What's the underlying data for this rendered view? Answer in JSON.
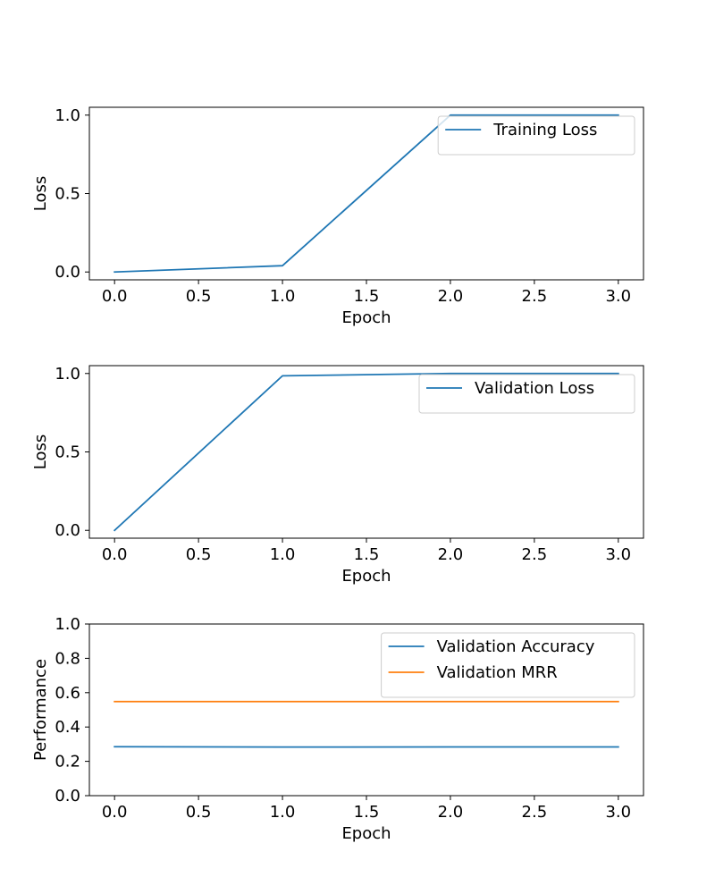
{
  "chart_data": [
    {
      "type": "line",
      "xlabel": "Epoch",
      "ylabel": "Loss",
      "xlim": [
        -0.15,
        3.15
      ],
      "ylim": [
        -0.05,
        1.05
      ],
      "xticks": [
        "0.0",
        "0.5",
        "1.0",
        "1.5",
        "2.0",
        "2.5",
        "3.0"
      ],
      "yticks": [
        "0.0",
        "0.5",
        "1.0"
      ],
      "grid": false,
      "legend_position": "top-right",
      "series": [
        {
          "name": "Training Loss",
          "color": "#1f77b4",
          "x": [
            0,
            1,
            2,
            3
          ],
          "y": [
            0.0,
            0.04,
            1.0,
            1.0
          ]
        }
      ]
    },
    {
      "type": "line",
      "xlabel": "Epoch",
      "ylabel": "Loss",
      "xlim": [
        -0.15,
        3.15
      ],
      "ylim": [
        -0.05,
        1.05
      ],
      "xticks": [
        "0.0",
        "0.5",
        "1.0",
        "1.5",
        "2.0",
        "2.5",
        "3.0"
      ],
      "yticks": [
        "0.0",
        "0.5",
        "1.0"
      ],
      "grid": false,
      "legend_position": "top-right",
      "series": [
        {
          "name": "Validation Loss",
          "color": "#1f77b4",
          "x": [
            0,
            1,
            2,
            3
          ],
          "y": [
            0.0,
            0.985,
            1.0,
            1.0
          ]
        }
      ]
    },
    {
      "type": "line",
      "xlabel": "Epoch",
      "ylabel": "Performance",
      "xlim": [
        -0.15,
        3.15
      ],
      "ylim": [
        0,
        1
      ],
      "xticks": [
        "0.0",
        "0.5",
        "1.0",
        "1.5",
        "2.0",
        "2.5",
        "3.0"
      ],
      "yticks": [
        "0.0",
        "0.2",
        "0.4",
        "0.6",
        "0.8",
        "1.0"
      ],
      "grid": false,
      "legend_position": "top-right",
      "series": [
        {
          "name": "Validation Accuracy",
          "color": "#1f77b4",
          "x": [
            0,
            1,
            2,
            3
          ],
          "y": [
            0.285,
            0.283,
            0.284,
            0.284
          ]
        },
        {
          "name": "Validation MRR",
          "color": "#ff7f0e",
          "x": [
            0,
            1,
            2,
            3
          ],
          "y": [
            0.548,
            0.548,
            0.548,
            0.548
          ]
        }
      ]
    }
  ]
}
